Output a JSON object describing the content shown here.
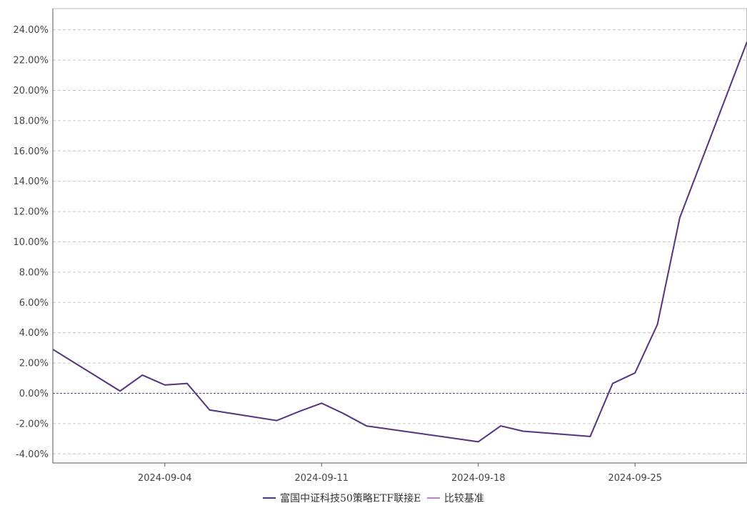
{
  "chart_data": {
    "type": "line",
    "x": [
      "2024-08-30",
      "2024-09-02",
      "2024-09-03",
      "2024-09-04",
      "2024-09-05",
      "2024-09-06",
      "2024-09-09",
      "2024-09-10",
      "2024-09-11",
      "2024-09-12",
      "2024-09-13",
      "2024-09-18",
      "2024-09-19",
      "2024-09-20",
      "2024-09-23",
      "2024-09-24",
      "2024-09-25",
      "2024-09-26",
      "2024-09-27",
      "2024-09-30"
    ],
    "x_ticks": [
      "2024-09-04",
      "2024-09-11",
      "2024-09-18",
      "2024-09-25"
    ],
    "y_ticks": [
      -4,
      -2,
      0,
      2,
      4,
      6,
      8,
      10,
      12,
      14,
      16,
      18,
      20,
      22,
      24
    ],
    "y_tick_labels": [
      "-4.00%",
      "-2.00%",
      "0.00%",
      "2.00%",
      "4.00%",
      "6.00%",
      "8.00%",
      "10.00%",
      "12.00%",
      "14.00%",
      "16.00%",
      "18.00%",
      "20.00%",
      "22.00%",
      "24.00%"
    ],
    "ylim": [
      -4.6,
      25.4
    ],
    "grid": true,
    "legend_position": "bottom",
    "series": [
      {
        "name": "富国中证科技50策略ETF联接E",
        "color": "#4b3a7a",
        "values": [
          2.9,
          0.15,
          1.2,
          0.55,
          0.65,
          -1.1,
          -1.8,
          -1.2,
          -0.65,
          -1.35,
          -2.15,
          -3.2,
          -2.15,
          -2.5,
          -2.85,
          0.65,
          1.35,
          4.55,
          11.6,
          23.2
        ]
      },
      {
        "name": "比较基准",
        "color": "#c77dd6",
        "values": [
          2.9,
          0.15,
          1.2,
          0.55,
          0.65,
          -1.1,
          -1.8,
          -1.2,
          -0.65,
          -1.35,
          -2.15,
          -3.2,
          -2.15,
          -2.5,
          -2.85,
          0.65,
          1.35,
          4.55,
          11.6,
          23.2
        ]
      }
    ]
  }
}
